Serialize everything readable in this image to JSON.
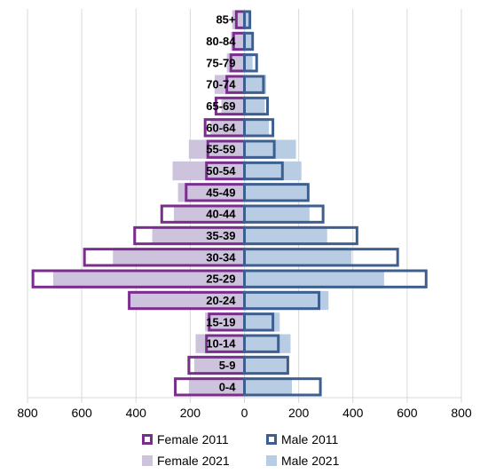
{
  "chart_data": {
    "type": "bar",
    "orientation": "horizontal-population-pyramid",
    "categories": [
      "0-4",
      "5-9",
      "10-14",
      "15-19",
      "20-24",
      "25-29",
      "30-34",
      "35-39",
      "40-44",
      "45-49",
      "50-54",
      "55-59",
      "60-64",
      "65-69",
      "70-74",
      "75-79",
      "80-84",
      "85+"
    ],
    "series": [
      {
        "name": "Female 2011",
        "side": "left",
        "style": "outline",
        "color": "#7b2d8e",
        "values": [
          255,
          205,
          140,
          130,
          425,
          780,
          590,
          405,
          305,
          215,
          140,
          135,
          145,
          105,
          65,
          50,
          40,
          30
        ]
      },
      {
        "name": "Female 2021",
        "side": "left",
        "style": "filled",
        "color": "#cdc3dc",
        "values": [
          205,
          185,
          180,
          145,
          420,
          705,
          485,
          340,
          260,
          245,
          265,
          205,
          125,
          85,
          110,
          65,
          50,
          45
        ]
      },
      {
        "name": "Male 2011",
        "side": "right",
        "style": "outline",
        "color": "#3d5f8f",
        "values": [
          280,
          160,
          125,
          105,
          275,
          670,
          565,
          415,
          290,
          235,
          140,
          110,
          105,
          85,
          70,
          45,
          30,
          20
        ]
      },
      {
        "name": "Male 2021",
        "side": "right",
        "style": "filled",
        "color": "#b8cce4",
        "values": [
          175,
          155,
          170,
          130,
          310,
          515,
          395,
          305,
          240,
          230,
          210,
          190,
          90,
          75,
          80,
          30,
          25,
          15
        ]
      }
    ],
    "xlim": [
      -800,
      800
    ],
    "xticks": [
      -800,
      -600,
      -400,
      -200,
      0,
      200,
      400,
      600,
      800
    ],
    "xtick_labels": [
      "800",
      "600",
      "400",
      "200",
      "0",
      "200",
      "400",
      "600",
      "800"
    ],
    "grid": "vertical",
    "legend": "bottom",
    "legend_entries": [
      "Female 2011",
      "Male 2011",
      "Female 2021",
      "Male 2021"
    ]
  }
}
